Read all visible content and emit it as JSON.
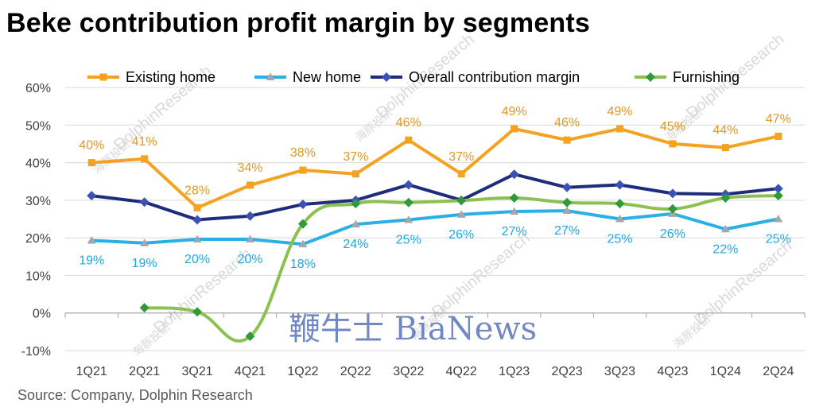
{
  "title": "Beke contribution profit margin by segments",
  "source": "Source: Company, Dolphin Research",
  "watermark": {
    "brand_cn": "鞭牛士",
    "brand_en": "BiaNews",
    "research": "DolphinResearch",
    "research_cn": "海豚投研"
  },
  "chart_data": {
    "type": "line",
    "title": "Beke contribution profit margin by segments",
    "xlabel": "",
    "ylabel": "",
    "ylim": [
      -10,
      60
    ],
    "yticks": [
      "-10%",
      "0%",
      "10%",
      "20%",
      "30%",
      "40%",
      "50%",
      "60%"
    ],
    "ytick_values": [
      -10,
      0,
      10,
      20,
      30,
      40,
      50,
      60
    ],
    "categories": [
      "1Q21",
      "2Q21",
      "3Q21",
      "4Q21",
      "1Q22",
      "2Q22",
      "3Q22",
      "4Q22",
      "1Q23",
      "2Q23",
      "3Q23",
      "4Q23",
      "1Q24",
      "2Q24"
    ],
    "legend_position": "top",
    "series": [
      {
        "name": "Existing home",
        "color": "#F4A21F",
        "marker": "square",
        "smooth": false,
        "label_pos": "above",
        "values": [
          40,
          41,
          28,
          34,
          38,
          37,
          46,
          37,
          49,
          46,
          49,
          45,
          44,
          47
        ],
        "labels": [
          "40%",
          "41%",
          "28%",
          "34%",
          "38%",
          "37%",
          "46%",
          "37%",
          "49%",
          "46%",
          "49%",
          "45%",
          "44%",
          "47%"
        ],
        "label_color": "#E5961E"
      },
      {
        "name": "New home",
        "color": "#2AB0E6",
        "marker": "triangle",
        "smooth": false,
        "label_pos": "below",
        "values": [
          19.3,
          18.6,
          19.6,
          19.6,
          18.3,
          23.6,
          24.8,
          26.2,
          27.0,
          27.2,
          25.0,
          26.4,
          22.3,
          25.0
        ],
        "labels": [
          "19%",
          "19%",
          "20%",
          "20%",
          "18%",
          "24%",
          "25%",
          "26%",
          "27%",
          "27%",
          "25%",
          "26%",
          "22%",
          "25%"
        ],
        "label_color": "#1FA8E0"
      },
      {
        "name": "Overall contribution margin",
        "color": "#1E2C7E",
        "marker": "diamond",
        "smooth": false,
        "label_pos": "none",
        "values": [
          31.2,
          29.5,
          24.8,
          25.8,
          28.9,
          30.0,
          34.1,
          30.0,
          36.9,
          33.4,
          34.1,
          31.8,
          31.6,
          33.1
        ],
        "labels": [],
        "label_color": "#1E2C7E"
      },
      {
        "name": "Furnishing",
        "color": "#8CC152",
        "marker": "diamond",
        "smooth": true,
        "label_pos": "none",
        "start_index": 1,
        "values": [
          null,
          1.4,
          0.3,
          -6.2,
          23.7,
          29.1,
          29.4,
          29.9,
          30.6,
          29.4,
          29.1,
          27.7,
          30.6,
          31.2
        ],
        "labels": [],
        "label_color": "#2E9A3A",
        "marker_color": "#2E9A3A"
      }
    ]
  }
}
